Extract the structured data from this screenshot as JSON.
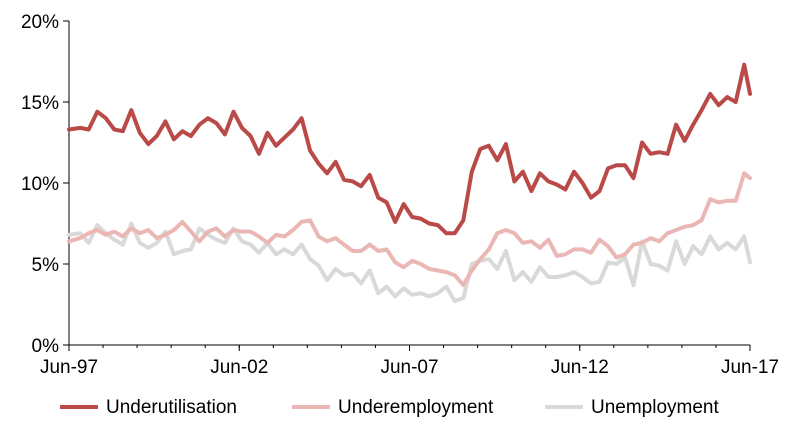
{
  "chart_data": {
    "type": "line",
    "x_tick_labels": [
      "Jun-97",
      "Jun-02",
      "Jun-07",
      "Jun-12",
      "Jun-17"
    ],
    "y_tick_labels": [
      "0%",
      "5%",
      "10%",
      "15%",
      "20%"
    ],
    "ylim": [
      0,
      20
    ],
    "x_range": [
      "Jun-97",
      "Jun-17"
    ],
    "grid": false,
    "legend_position": "bottom",
    "series": [
      {
        "name": "Underutilisation",
        "color": "#b94a48",
        "points": [
          [
            1997.42,
            13.3
          ],
          [
            1997.75,
            13.4
          ],
          [
            1998.0,
            13.3
          ],
          [
            1998.25,
            14.4
          ],
          [
            1998.5,
            14.0
          ],
          [
            1998.75,
            13.3
          ],
          [
            1999.0,
            13.2
          ],
          [
            1999.25,
            14.5
          ],
          [
            1999.5,
            13.1
          ],
          [
            1999.75,
            12.4
          ],
          [
            2000.0,
            12.9
          ],
          [
            2000.25,
            13.8
          ],
          [
            2000.5,
            12.7
          ],
          [
            2000.75,
            13.2
          ],
          [
            2001.0,
            12.9
          ],
          [
            2001.25,
            13.6
          ],
          [
            2001.5,
            14.0
          ],
          [
            2001.75,
            13.7
          ],
          [
            2002.0,
            13.0
          ],
          [
            2002.25,
            14.4
          ],
          [
            2002.5,
            13.4
          ],
          [
            2002.75,
            12.9
          ],
          [
            2003.0,
            11.8
          ],
          [
            2003.25,
            13.1
          ],
          [
            2003.5,
            12.3
          ],
          [
            2003.75,
            12.8
          ],
          [
            2004.0,
            13.3
          ],
          [
            2004.25,
            14.0
          ],
          [
            2004.5,
            12.0
          ],
          [
            2004.75,
            11.2
          ],
          [
            2005.0,
            10.6
          ],
          [
            2005.25,
            11.3
          ],
          [
            2005.5,
            10.2
          ],
          [
            2005.75,
            10.1
          ],
          [
            2006.0,
            9.8
          ],
          [
            2006.25,
            10.5
          ],
          [
            2006.5,
            9.1
          ],
          [
            2006.75,
            8.8
          ],
          [
            2007.0,
            7.6
          ],
          [
            2007.25,
            8.7
          ],
          [
            2007.5,
            7.9
          ],
          [
            2007.75,
            7.8
          ],
          [
            2008.0,
            7.5
          ],
          [
            2008.25,
            7.4
          ],
          [
            2008.5,
            6.9
          ],
          [
            2008.75,
            6.9
          ],
          [
            2009.0,
            7.7
          ],
          [
            2009.25,
            10.7
          ],
          [
            2009.5,
            12.1
          ],
          [
            2009.75,
            12.3
          ],
          [
            2010.0,
            11.4
          ],
          [
            2010.25,
            12.4
          ],
          [
            2010.5,
            10.1
          ],
          [
            2010.75,
            10.7
          ],
          [
            2011.0,
            9.5
          ],
          [
            2011.25,
            10.6
          ],
          [
            2011.5,
            10.1
          ],
          [
            2011.75,
            9.9
          ],
          [
            2012.0,
            9.6
          ],
          [
            2012.25,
            10.7
          ],
          [
            2012.5,
            10.0
          ],
          [
            2012.75,
            9.1
          ],
          [
            2013.0,
            9.5
          ],
          [
            2013.25,
            10.9
          ],
          [
            2013.5,
            11.1
          ],
          [
            2013.75,
            11.1
          ],
          [
            2014.0,
            10.3
          ],
          [
            2014.25,
            12.5
          ],
          [
            2014.5,
            11.8
          ],
          [
            2014.75,
            11.9
          ],
          [
            2015.0,
            11.8
          ],
          [
            2015.25,
            13.6
          ],
          [
            2015.5,
            12.6
          ],
          [
            2015.75,
            13.6
          ],
          [
            2016.0,
            14.5
          ],
          [
            2016.25,
            15.5
          ],
          [
            2016.5,
            14.8
          ],
          [
            2016.75,
            15.3
          ],
          [
            2017.0,
            15.0
          ],
          [
            2017.25,
            17.3
          ],
          [
            2017.42,
            15.5
          ]
        ]
      },
      {
        "name": "Underemployment",
        "color": "#eab7b5",
        "points": [
          [
            1997.42,
            6.4
          ],
          [
            1997.75,
            6.6
          ],
          [
            1998.0,
            6.9
          ],
          [
            1998.25,
            7.1
          ],
          [
            1998.5,
            6.8
          ],
          [
            1998.75,
            7.0
          ],
          [
            1999.0,
            6.7
          ],
          [
            1999.25,
            7.2
          ],
          [
            1999.5,
            6.9
          ],
          [
            1999.75,
            7.1
          ],
          [
            2000.0,
            6.6
          ],
          [
            2000.25,
            6.8
          ],
          [
            2000.5,
            7.1
          ],
          [
            2000.75,
            7.6
          ],
          [
            2001.0,
            7.0
          ],
          [
            2001.25,
            6.4
          ],
          [
            2001.5,
            7.0
          ],
          [
            2001.75,
            7.2
          ],
          [
            2002.0,
            6.7
          ],
          [
            2002.25,
            7.1
          ],
          [
            2002.5,
            7.0
          ],
          [
            2002.75,
            7.0
          ],
          [
            2003.0,
            6.7
          ],
          [
            2003.25,
            6.3
          ],
          [
            2003.5,
            6.8
          ],
          [
            2003.75,
            6.7
          ],
          [
            2004.0,
            7.1
          ],
          [
            2004.25,
            7.6
          ],
          [
            2004.5,
            7.7
          ],
          [
            2004.75,
            6.7
          ],
          [
            2005.0,
            6.4
          ],
          [
            2005.25,
            6.6
          ],
          [
            2005.5,
            6.2
          ],
          [
            2005.75,
            5.8
          ],
          [
            2006.0,
            5.8
          ],
          [
            2006.25,
            6.2
          ],
          [
            2006.5,
            5.8
          ],
          [
            2006.75,
            5.9
          ],
          [
            2007.0,
            5.1
          ],
          [
            2007.25,
            4.8
          ],
          [
            2007.5,
            5.2
          ],
          [
            2007.75,
            5.0
          ],
          [
            2008.0,
            4.7
          ],
          [
            2008.25,
            4.6
          ],
          [
            2008.5,
            4.5
          ],
          [
            2008.75,
            4.3
          ],
          [
            2009.0,
            3.7
          ],
          [
            2009.25,
            4.6
          ],
          [
            2009.5,
            5.3
          ],
          [
            2009.75,
            5.9
          ],
          [
            2010.0,
            6.9
          ],
          [
            2010.25,
            7.1
          ],
          [
            2010.5,
            6.9
          ],
          [
            2010.75,
            6.3
          ],
          [
            2011.0,
            6.4
          ],
          [
            2011.25,
            6.0
          ],
          [
            2011.5,
            6.5
          ],
          [
            2011.75,
            5.5
          ],
          [
            2012.0,
            5.6
          ],
          [
            2012.25,
            5.9
          ],
          [
            2012.5,
            5.9
          ],
          [
            2012.75,
            5.7
          ],
          [
            2013.0,
            6.5
          ],
          [
            2013.25,
            6.1
          ],
          [
            2013.5,
            5.4
          ],
          [
            2013.75,
            5.6
          ],
          [
            2014.0,
            6.2
          ],
          [
            2014.25,
            6.3
          ],
          [
            2014.5,
            6.6
          ],
          [
            2014.75,
            6.4
          ],
          [
            2015.0,
            6.9
          ],
          [
            2015.25,
            7.1
          ],
          [
            2015.5,
            7.3
          ],
          [
            2015.75,
            7.4
          ],
          [
            2016.0,
            7.7
          ],
          [
            2016.25,
            9.0
          ],
          [
            2016.5,
            8.8
          ],
          [
            2016.75,
            8.9
          ],
          [
            2017.0,
            8.9
          ],
          [
            2017.25,
            10.6
          ],
          [
            2017.42,
            10.3
          ]
        ]
      },
      {
        "name": "Unemployment",
        "color": "#d9d9d9",
        "points": [
          [
            1997.42,
            6.8
          ],
          [
            1997.75,
            6.9
          ],
          [
            1998.0,
            6.3
          ],
          [
            1998.25,
            7.4
          ],
          [
            1998.5,
            6.9
          ],
          [
            1998.75,
            6.5
          ],
          [
            1999.0,
            6.2
          ],
          [
            1999.25,
            7.5
          ],
          [
            1999.5,
            6.3
          ],
          [
            1999.75,
            6.0
          ],
          [
            2000.0,
            6.3
          ],
          [
            2000.25,
            7.0
          ],
          [
            2000.5,
            5.6
          ],
          [
            2000.75,
            5.8
          ],
          [
            2001.0,
            5.9
          ],
          [
            2001.25,
            7.2
          ],
          [
            2001.5,
            6.8
          ],
          [
            2001.75,
            6.5
          ],
          [
            2002.0,
            6.3
          ],
          [
            2002.25,
            7.2
          ],
          [
            2002.5,
            6.4
          ],
          [
            2002.75,
            6.2
          ],
          [
            2003.0,
            5.7
          ],
          [
            2003.25,
            6.3
          ],
          [
            2003.5,
            5.6
          ],
          [
            2003.75,
            5.9
          ],
          [
            2004.0,
            5.6
          ],
          [
            2004.25,
            6.2
          ],
          [
            2004.5,
            5.3
          ],
          [
            2004.75,
            4.9
          ],
          [
            2005.0,
            4.0
          ],
          [
            2005.25,
            4.7
          ],
          [
            2005.5,
            4.3
          ],
          [
            2005.75,
            4.4
          ],
          [
            2006.0,
            3.8
          ],
          [
            2006.25,
            4.6
          ],
          [
            2006.5,
            3.2
          ],
          [
            2006.75,
            3.6
          ],
          [
            2007.0,
            3.0
          ],
          [
            2007.25,
            3.5
          ],
          [
            2007.5,
            3.1
          ],
          [
            2007.75,
            3.2
          ],
          [
            2008.0,
            3.0
          ],
          [
            2008.25,
            3.2
          ],
          [
            2008.5,
            3.6
          ],
          [
            2008.75,
            2.7
          ],
          [
            2009.0,
            2.9
          ],
          [
            2009.25,
            5.0
          ],
          [
            2009.5,
            5.2
          ],
          [
            2009.75,
            5.3
          ],
          [
            2010.0,
            4.7
          ],
          [
            2010.25,
            5.8
          ],
          [
            2010.5,
            4.0
          ],
          [
            2010.75,
            4.5
          ],
          [
            2011.0,
            3.9
          ],
          [
            2011.25,
            4.8
          ],
          [
            2011.5,
            4.2
          ],
          [
            2011.75,
            4.2
          ],
          [
            2012.0,
            4.3
          ],
          [
            2012.25,
            4.5
          ],
          [
            2012.5,
            4.2
          ],
          [
            2012.75,
            3.8
          ],
          [
            2013.0,
            3.9
          ],
          [
            2013.25,
            5.1
          ],
          [
            2013.5,
            5.0
          ],
          [
            2013.75,
            5.4
          ],
          [
            2014.0,
            3.7
          ],
          [
            2014.25,
            6.4
          ],
          [
            2014.5,
            5.0
          ],
          [
            2014.75,
            4.9
          ],
          [
            2015.0,
            4.6
          ],
          [
            2015.25,
            6.4
          ],
          [
            2015.5,
            5.0
          ],
          [
            2015.75,
            6.1
          ],
          [
            2016.0,
            5.6
          ],
          [
            2016.25,
            6.7
          ],
          [
            2016.5,
            5.9
          ],
          [
            2016.75,
            6.3
          ],
          [
            2017.0,
            5.9
          ],
          [
            2017.25,
            6.7
          ],
          [
            2017.42,
            5.1
          ]
        ]
      }
    ]
  }
}
